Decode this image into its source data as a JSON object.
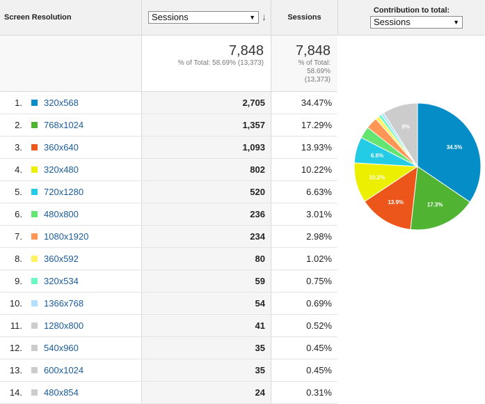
{
  "header": {
    "dimension_label": "Screen Resolution",
    "metric_select": "Sessions",
    "sort_icon": "sort-down-icon",
    "metric_label": "Sessions",
    "contribution_label": "Contribution to total:",
    "contribution_select": "Sessions"
  },
  "totals": {
    "value_big": "7,848",
    "value_small": "% of Total: 58.69% (13,373)",
    "sess_big": "7,848",
    "sess_small_line1": "% of Total:",
    "sess_small_line2": "58.69%",
    "sess_small_line3": "(13,373)"
  },
  "rows": [
    {
      "index": "1.",
      "resolution": "320x568",
      "sessions": "2,705",
      "percent": "34.47%",
      "color": "#058dc7"
    },
    {
      "index": "2.",
      "resolution": "768x1024",
      "sessions": "1,357",
      "percent": "17.29%",
      "color": "#50b432"
    },
    {
      "index": "3.",
      "resolution": "360x640",
      "sessions": "1,093",
      "percent": "13.93%",
      "color": "#ed561b"
    },
    {
      "index": "4.",
      "resolution": "320x480",
      "sessions": "802",
      "percent": "10.22%",
      "color": "#edef00"
    },
    {
      "index": "5.",
      "resolution": "720x1280",
      "sessions": "520",
      "percent": "6.63%",
      "color": "#24cbe5"
    },
    {
      "index": "6.",
      "resolution": "480x800",
      "sessions": "236",
      "percent": "3.01%",
      "color": "#64e572"
    },
    {
      "index": "7.",
      "resolution": "1080x1920",
      "sessions": "234",
      "percent": "2.98%",
      "color": "#ff9655"
    },
    {
      "index": "8.",
      "resolution": "360x592",
      "sessions": "80",
      "percent": "1.02%",
      "color": "#fff263"
    },
    {
      "index": "9.",
      "resolution": "320x534",
      "sessions": "59",
      "percent": "0.75%",
      "color": "#6af9c4"
    },
    {
      "index": "10.",
      "resolution": "1366x768",
      "sessions": "54",
      "percent": "0.69%",
      "color": "#b2deff"
    },
    {
      "index": "11.",
      "resolution": "1280x800",
      "sessions": "41",
      "percent": "0.52%",
      "color": "#cccccc"
    },
    {
      "index": "12.",
      "resolution": "540x960",
      "sessions": "35",
      "percent": "0.45%",
      "color": "#cccccc"
    },
    {
      "index": "13.",
      "resolution": "600x1024",
      "sessions": "35",
      "percent": "0.45%",
      "color": "#cccccc"
    },
    {
      "index": "14.",
      "resolution": "480x854",
      "sessions": "24",
      "percent": "0.31%",
      "color": "#cccccc"
    }
  ],
  "chart_data": {
    "type": "pie",
    "slices": [
      {
        "value": 34.47,
        "label": "34.5%",
        "color": "#058dc7"
      },
      {
        "value": 17.29,
        "label": "17.3%",
        "color": "#50b432"
      },
      {
        "value": 13.93,
        "label": "13.9%",
        "color": "#ed561b"
      },
      {
        "value": 10.22,
        "label": "10.2%",
        "color": "#edef00"
      },
      {
        "value": 6.63,
        "label": "6.6%",
        "color": "#24cbe5"
      },
      {
        "value": 3.01,
        "label": "",
        "color": "#64e572"
      },
      {
        "value": 2.98,
        "label": "",
        "color": "#ff9655"
      },
      {
        "value": 1.02,
        "label": "",
        "color": "#fff263"
      },
      {
        "value": 0.75,
        "label": "",
        "color": "#6af9c4"
      },
      {
        "value": 0.69,
        "label": "",
        "color": "#b2deff"
      },
      {
        "value": 9.0,
        "label": "9%",
        "color": "#cccccc"
      }
    ]
  }
}
